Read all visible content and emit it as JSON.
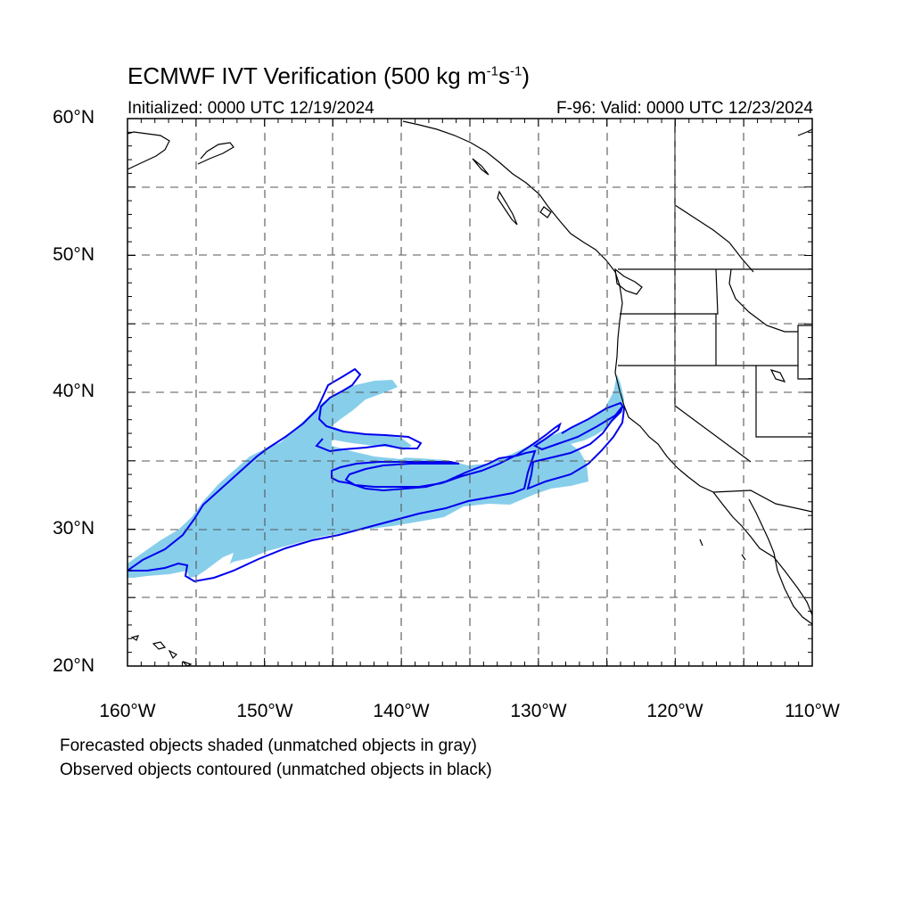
{
  "title": {
    "main": "ECMWF IVT Verification (500 kg m",
    "exp1": "-1",
    "mid": "s",
    "exp2": "-1",
    "close": ")"
  },
  "initialized": "Initialized: 0000 UTC 12/19/2024",
  "valid": "F-96: Valid: 0000 UTC 12/23/2024",
  "lat_labels": [
    "60°N",
    "50°N",
    "40°N",
    "30°N",
    "20°N"
  ],
  "lon_labels": [
    "160°W",
    "150°W",
    "140°W",
    "130°W",
    "120°W",
    "110°W"
  ],
  "footnotes": [
    "Forecasted objects shaded (unmatched objects in gray)",
    "Observed objects contoured (unmatched objects in black)"
  ],
  "colors": {
    "forecast_fill": "#87ceeb",
    "observed_contour": "#0000ee",
    "coastline": "#000000",
    "grid": "#555555"
  },
  "map": {
    "projection": "cylindrical-equidistant",
    "lon_range": [
      -160,
      -110
    ],
    "lat_range": [
      20,
      60
    ],
    "grid_spacing_deg": 5,
    "grid_style": "dashed"
  }
}
